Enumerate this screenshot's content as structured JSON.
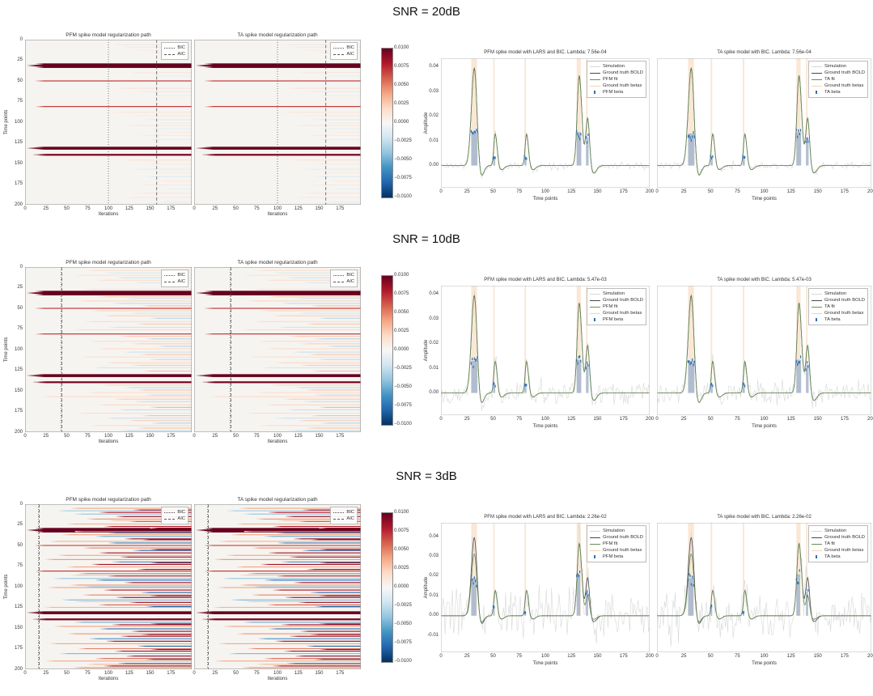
{
  "chart_data": {
    "type": "heatmap+line",
    "heatmap": {
      "title_left": "PFM spike model regularization path",
      "title_right": "TA spike model regularization path",
      "xlabel": "Iterations",
      "ylabel": "Time points",
      "xticks": [
        0,
        25,
        50,
        75,
        100,
        125,
        150,
        175
      ],
      "yticks": [
        0,
        25,
        50,
        75,
        100,
        125,
        150,
        175,
        200
      ],
      "x_range": [
        0,
        200
      ],
      "y_range": [
        0,
        200
      ],
      "legend": [
        {
          "label": "BIC",
          "style": "dotted"
        },
        {
          "label": "AIC",
          "style": "dashed"
        }
      ],
      "main_bands": [
        [
          31.5,
          13,
          0.01,
          5.5
        ],
        [
          31.5,
          3,
          0.01,
          1.8
        ],
        [
          50,
          13,
          0.007,
          1.2
        ],
        [
          81,
          13,
          0.007,
          1.2
        ],
        [
          131.5,
          13,
          0.01,
          3.5
        ],
        [
          131.5,
          3,
          0.01,
          1.5
        ],
        [
          139.5,
          16,
          0.0095,
          2.2
        ],
        [
          139.5,
          10,
          0.0095,
          1.0
        ]
      ]
    },
    "colorbar": {
      "vmin": -0.01,
      "vmax": 0.01,
      "tick_labels": [
        "0.0100",
        "0.0075",
        "0.0050",
        "0.0025",
        "0.0000",
        "−0.0025",
        "−0.0050",
        "−0.0075",
        "−0.0100"
      ],
      "tick_values": [
        0.01,
        0.0075,
        0.005,
        0.0025,
        0,
        -0.0025,
        -0.005,
        -0.0075,
        -0.01
      ],
      "stops": [
        "#67001f",
        "#b2182b",
        "#d6604d",
        "#f4a582",
        "#fddbc7",
        "#f7f7f7",
        "#d1e5f0",
        "#92c5de",
        "#4393c3",
        "#2166ac",
        "#053061"
      ]
    },
    "lineplot": {
      "xlabel": "Time points",
      "ylabel": "Amplitude",
      "xticks": [
        0,
        25,
        50,
        75,
        100,
        125,
        150,
        175,
        200
      ],
      "x_range": [
        0,
        200
      ],
      "bold_peaks": [
        [
          32,
          0.04,
          2.8,
          2.6
        ],
        [
          52,
          0.013,
          1.3,
          1.8
        ],
        [
          82,
          0.013,
          1.3,
          1.8
        ],
        [
          132.5,
          0.037,
          2.0,
          2.6
        ],
        [
          140.5,
          0.023,
          2.0,
          1.8
        ]
      ],
      "undershoot": {
        "frac": 0.13,
        "delay": 6,
        "width": 2.8
      },
      "gt_beta_bands": [
        [
          29,
          34.5
        ],
        [
          50,
          51.5
        ],
        [
          80,
          81.5
        ],
        [
          130,
          134
        ],
        [
          139,
          140.5
        ]
      ],
      "colors": {
        "simulation": "#d8d8d8",
        "ground_truth_bold": "#4a4a4a",
        "fit": "#6b8e58",
        "gt_betas_band": "#f5d3b4",
        "beta_fill": "#8aa6c9",
        "beta_marker": "#2d6fb3"
      }
    },
    "rows": [
      {
        "snr_title": "SNR = 20dB",
        "bic_iter": 100,
        "aic_iter": 158,
        "left_title": "PFM spike model with LARS and BIC. Lambda: 7.56e-04",
        "right_title": "TA spike model with BIC. Lambda: 7.56e-04",
        "left_legend": [
          "Simulation",
          "Ground truth BOLD",
          "PFM fit",
          "Ground truth betas",
          "PFM beta"
        ],
        "right_legend": [
          "Simulation",
          "Ground truth BOLD",
          "TA fit",
          "Ground truth betas",
          "TA beta"
        ],
        "ylim": [
          -0.009,
          0.0435
        ],
        "yticks": [
          0,
          0.01,
          0.02,
          0.03,
          0.04
        ],
        "noise_sigma": 0.0007,
        "seed": 11,
        "fit_scales": [
          1,
          1,
          1,
          1,
          1
        ],
        "beta_fills": [
          [
            29,
            35,
            0.013
          ],
          [
            50,
            52,
            0.0035
          ],
          [
            80,
            82,
            0.0035
          ],
          [
            130,
            134.5,
            0.0135
          ],
          [
            139,
            141.5,
            0.0115
          ]
        ],
        "noise_streaks": [
          [
            6,
            105,
            0.0012
          ],
          [
            9,
            118,
            -0.0011
          ],
          [
            13,
            132,
            0.001
          ],
          [
            16,
            148,
            -0.001
          ],
          [
            40,
            126,
            0.0013
          ],
          [
            44,
            152,
            -0.001
          ],
          [
            59,
            112,
            0.0014
          ],
          [
            63,
            138,
            -0.0012
          ],
          [
            68,
            152,
            0.001
          ],
          [
            88,
            106,
            0.0013
          ],
          [
            92,
            128,
            0.0011
          ],
          [
            97,
            142,
            -0.0012
          ],
          [
            101,
            158,
            0.001
          ],
          [
            104,
            120,
            0.0012
          ],
          [
            108,
            150,
            -0.001
          ],
          [
            112,
            165,
            0.0011
          ],
          [
            116,
            135,
            0.0011
          ],
          [
            121,
            148,
            -0.001
          ],
          [
            146,
            118,
            0.0013
          ],
          [
            151,
            142,
            0.001
          ],
          [
            157,
            130,
            -0.0011
          ],
          [
            161,
            155,
            0.001
          ],
          [
            166,
            145,
            -0.0013
          ],
          [
            171,
            160,
            0.001
          ],
          [
            176,
            138,
            0.001
          ],
          [
            181,
            165,
            -0.001
          ],
          [
            186,
            130,
            0.0011
          ],
          [
            191,
            122,
            0.0012
          ],
          [
            196,
            160,
            0.001
          ],
          [
            198,
            145,
            -0.001
          ]
        ]
      },
      {
        "snr_title": "SNR = 10dB",
        "bic_iter": 43,
        "aic_iter": 44,
        "left_title": "PFM spike model with LARS and BIC. Lambda: 5.47e-03",
        "right_title": "TA spike model with BIC. Lambda: 5.47e-03",
        "left_legend": [
          "Simulation",
          "Ground truth BOLD",
          "PFM fit",
          "Ground truth betas",
          "PFM beta"
        ],
        "right_legend": [
          "Simulation",
          "Ground truth BOLD",
          "TA fit",
          "Ground truth betas",
          "TA beta"
        ],
        "ylim": [
          -0.009,
          0.0435
        ],
        "yticks": [
          0,
          0.01,
          0.02,
          0.03,
          0.04
        ],
        "noise_sigma": 0.0022,
        "seed": 22,
        "fit_scales": [
          1,
          1,
          1,
          1,
          1
        ],
        "beta_fills": [
          [
            29,
            35,
            0.013
          ],
          [
            50,
            52,
            0.0035
          ],
          [
            80,
            82,
            0.0035
          ],
          [
            130,
            134.5,
            0.0135
          ],
          [
            139,
            141.5,
            0.0115
          ]
        ],
        "noise_streaks": [
          [
            4,
            75,
            0.0018
          ],
          [
            7,
            95,
            -0.0016
          ],
          [
            10,
            60,
            0.0015
          ],
          [
            13,
            110,
            -0.002
          ],
          [
            16,
            85,
            0.0018
          ],
          [
            19,
            130,
            -0.0015
          ],
          [
            27,
            70,
            0.002
          ],
          [
            36,
            90,
            0.0025
          ],
          [
            38,
            120,
            -0.002
          ],
          [
            41,
            65,
            0.0022
          ],
          [
            44,
            105,
            -0.0025
          ],
          [
            47,
            140,
            0.003
          ],
          [
            53,
            80,
            0.0022
          ],
          [
            56,
            125,
            -0.002
          ],
          [
            59,
            95,
            0.0025
          ],
          [
            62,
            150,
            -0.003
          ],
          [
            66,
            72,
            0.002
          ],
          [
            69,
            135,
            0.0028
          ],
          [
            73,
            100,
            -0.002
          ],
          [
            76,
            58,
            0.002
          ],
          [
            84,
            115,
            0.0026
          ],
          [
            87,
            145,
            -0.0028
          ],
          [
            90,
            78,
            0.002
          ],
          [
            93,
            128,
            0.0024
          ],
          [
            96,
            160,
            -0.003
          ],
          [
            99,
            88,
            0.002
          ],
          [
            103,
            118,
            -0.0022
          ],
          [
            106,
            138,
            0.0028
          ],
          [
            109,
            68,
            0.0018
          ],
          [
            112,
            150,
            -0.0026
          ],
          [
            116,
            98,
            0.0022
          ],
          [
            119,
            128,
            0.0026
          ],
          [
            122,
            82,
            -0.0018
          ],
          [
            126,
            142,
            0.003
          ],
          [
            143,
            92,
            0.0022
          ],
          [
            146,
            120,
            -0.0024
          ],
          [
            149,
            135,
            0.0028
          ],
          [
            152,
            75,
            0.0018
          ],
          [
            155,
            145,
            -0.0026
          ],
          [
            157,
            20,
            0.002
          ],
          [
            160,
            108,
            0.0026
          ],
          [
            163,
            132,
            -0.0024
          ],
          [
            167,
            88,
            0.0022
          ],
          [
            170,
            150,
            0.0035
          ],
          [
            173,
            112,
            -0.0024
          ],
          [
            177,
            62,
            0.0018
          ],
          [
            180,
            140,
            0.003
          ],
          [
            183,
            98,
            -0.0022
          ],
          [
            186,
            125,
            0.0026
          ],
          [
            189,
            152,
            -0.003
          ],
          [
            192,
            80,
            0.002
          ],
          [
            195,
            135,
            0.0028
          ],
          [
            198,
            115,
            -0.0024
          ]
        ]
      },
      {
        "snr_title": "SNR = 3dB",
        "bic_iter": 16,
        "aic_iter": 17,
        "left_title": "PFM spike model with LARS and BIC. Lambda: 2.26e-02",
        "right_title": "TA spike model with BIC. Lambda: 2.26e-02",
        "left_legend": [
          "Simulation",
          "Ground truth BOLD",
          "PFM fit",
          "Ground truth betas",
          "PFM beta"
        ],
        "right_legend": [
          "Simulation",
          "Ground truth BOLD",
          "TA fit",
          "Ground truth betas",
          "TA beta"
        ],
        "ylim": [
          -0.0185,
          0.047
        ],
        "yticks": [
          -0.01,
          0,
          0.01,
          0.02,
          0.03,
          0.04
        ],
        "noise_sigma": 0.0058,
        "seed": 33,
        "fit_scales": [
          0.8,
          1,
          1,
          1,
          0.6
        ],
        "beta_fills": [
          [
            29,
            34,
            0.019
          ],
          [
            50,
            51.5,
            0.005
          ],
          [
            80,
            81.5,
            0.002
          ],
          [
            130,
            133.5,
            0.021
          ],
          [
            139,
            141,
            0.012
          ]
        ],
        "noise_streaks": [
          [
            5,
            55,
            0.004
          ],
          [
            8,
            40,
            -0.0035
          ],
          [
            10,
            90,
            0.008
          ],
          [
            12,
            60,
            -0.004
          ],
          [
            15,
            110,
            0.009
          ],
          [
            18,
            75,
            0.0045
          ],
          [
            21,
            125,
            -0.006
          ],
          [
            24,
            50,
            0.0035
          ],
          [
            27,
            95,
            0.008
          ],
          [
            37,
            45,
            0.004
          ],
          [
            39,
            85,
            -0.005
          ],
          [
            42,
            120,
            0.009
          ],
          [
            45,
            30,
            0.0035
          ],
          [
            47,
            100,
            -0.007
          ],
          [
            50,
            13,
            0.006
          ],
          [
            53,
            70,
            0.005
          ],
          [
            56,
            130,
            -0.008
          ],
          [
            59,
            90,
            0.0085
          ],
          [
            62,
            40,
            0.004
          ],
          [
            64,
            115,
            0.009
          ],
          [
            67,
            25,
            0.0045
          ],
          [
            70,
            105,
            -0.006
          ],
          [
            73,
            80,
            0.0085
          ],
          [
            76,
            50,
            0.004
          ],
          [
            79,
            135,
            0.009
          ],
          [
            84,
            65,
            -0.005
          ],
          [
            87,
            100,
            0.0085
          ],
          [
            90,
            35,
            -0.004
          ],
          [
            92,
            85,
            -0.0075
          ],
          [
            95,
            120,
            0.009
          ],
          [
            98,
            55,
            0.0045
          ],
          [
            101,
            28,
            0.004
          ],
          [
            104,
            95,
            0.0085
          ],
          [
            107,
            140,
            -0.008
          ],
          [
            110,
            70,
            0.005
          ],
          [
            113,
            110,
            0.009
          ],
          [
            116,
            45,
            -0.0045
          ],
          [
            119,
            125,
            0.0085
          ],
          [
            122,
            88,
            0.006
          ],
          [
            125,
            23,
            0.0035
          ],
          [
            143,
            60,
            -0.005
          ],
          [
            146,
            105,
            0.0085
          ],
          [
            148,
            35,
            0.004
          ],
          [
            151,
            90,
            -0.0075
          ],
          [
            154,
            128,
            0.009
          ],
          [
            157,
            52,
            0.0045
          ],
          [
            160,
            115,
            0.0085
          ],
          [
            163,
            78,
            -0.006
          ],
          [
            166,
            98,
            0.009
          ],
          [
            169,
            30,
            0.004
          ],
          [
            172,
            135,
            -0.008
          ],
          [
            175,
            64,
            0.005
          ],
          [
            178,
            108,
            0.0085
          ],
          [
            181,
            42,
            -0.0045
          ],
          [
            184,
            122,
            0.009
          ],
          [
            187,
            85,
            0.006
          ],
          [
            190,
            26,
            0.004
          ],
          [
            193,
            112,
            -0.0085
          ],
          [
            196,
            95,
            0.009
          ],
          [
            198,
            58,
            0.0045
          ],
          [
            33,
            60,
            0.005
          ],
          [
            35,
            100,
            -0.006
          ],
          [
            43,
            140,
            0.0095
          ],
          [
            55,
            150,
            0.0095
          ],
          [
            71,
            150,
            0.0095
          ],
          [
            86,
            55,
            0.003
          ],
          [
            100,
            70,
            -0.004
          ],
          [
            111,
            150,
            0.0095
          ],
          [
            118,
            60,
            0.003
          ],
          [
            124,
            145,
            -0.0085
          ],
          [
            145,
            150,
            0.0095
          ],
          [
            158,
            140,
            0.009
          ],
          [
            176,
            150,
            0.0095
          ],
          [
            188,
            145,
            -0.009
          ],
          [
            194,
            75,
            0.0035
          ],
          [
            7,
            130,
            0.0085
          ],
          [
            20,
            100,
            0.003
          ],
          [
            29,
            150,
            0.009
          ]
        ]
      }
    ]
  }
}
